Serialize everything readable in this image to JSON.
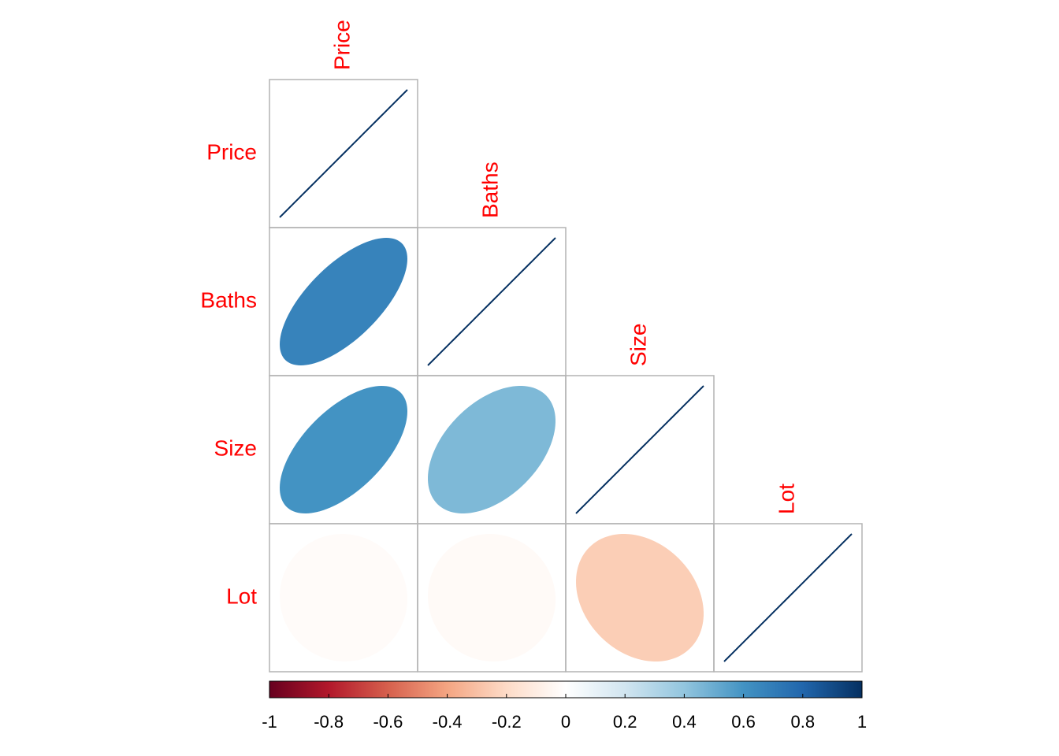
{
  "chart_data": {
    "type": "corrplot",
    "variables": [
      "Price",
      "Baths",
      "Size",
      "Lot"
    ],
    "matrix": [
      [
        1,
        null,
        null,
        null
      ],
      [
        0.67,
        1,
        null,
        null
      ],
      [
        0.6,
        0.45,
        1,
        null
      ],
      [
        -0.02,
        -0.03,
        -0.25,
        1
      ]
    ],
    "label_color": "#ff0000",
    "colors": [
      "#67001F",
      "#B2182B",
      "#D6604D",
      "#F4A582",
      "#FDDBC7",
      "#FFFFFF",
      "#D1E5F0",
      "#92C5DE",
      "#4393C3",
      "#2166AC",
      "#053061"
    ],
    "clim": [
      -1,
      1
    ],
    "cticks": [
      -1,
      -0.8,
      -0.6,
      -0.4,
      -0.2,
      0,
      0.2,
      0.4,
      0.6,
      0.8,
      1
    ]
  }
}
